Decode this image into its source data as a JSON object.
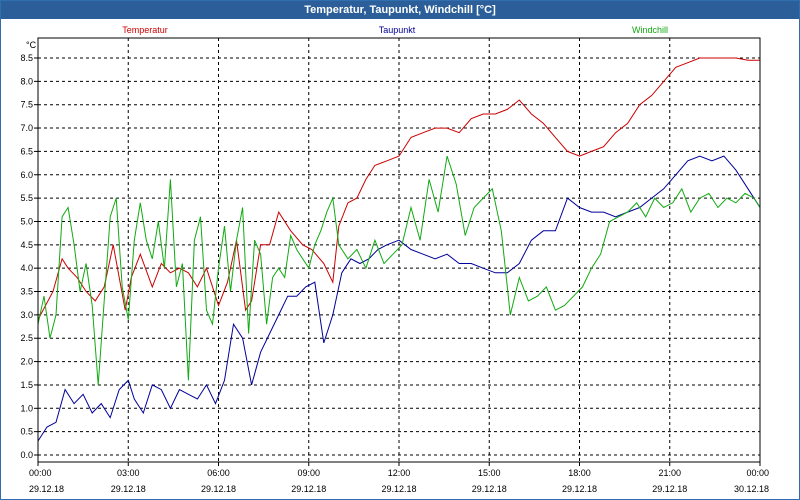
{
  "window": {
    "title": "Temperatur, Taupunkt, Windchill [°C]"
  },
  "colors": {
    "temperatur": "#cc0000",
    "taupunkt": "#000099",
    "windchill": "#11aa11",
    "titlebar": "#2c5f99",
    "grid": "#000000"
  },
  "chart_data": {
    "type": "line",
    "title": "Temperatur, Taupunkt, Windchill [°C]",
    "ylabel": "°C",
    "ylim": [
      0.0,
      8.5
    ],
    "yticks": [
      "0.0",
      "0.5",
      "1.0",
      "1.5",
      "2.0",
      "2.5",
      "3.0",
      "3.5",
      "4.0",
      "4.5",
      "5.0",
      "5.5",
      "6.0",
      "6.5",
      "7.0",
      "7.5",
      "8.0",
      "8.5"
    ],
    "xlim": [
      0,
      24
    ],
    "xticks": [
      {
        "time": "00:00",
        "date": "29.12.18"
      },
      {
        "time": "03:00",
        "date": "29.12.18"
      },
      {
        "time": "06:00",
        "date": "29.12.18"
      },
      {
        "time": "09:00",
        "date": "29.12.18"
      },
      {
        "time": "12:00",
        "date": "29.12.18"
      },
      {
        "time": "15:00",
        "date": "29.12.18"
      },
      {
        "time": "18:00",
        "date": "29.12.18"
      },
      {
        "time": "21:00",
        "date": "29.12.18"
      },
      {
        "time": "00:00",
        "date": "30.12.18"
      }
    ],
    "series": [
      {
        "name": "Temperatur",
        "x": [
          0,
          0.5,
          0.8,
          1.0,
          1.3,
          1.6,
          1.9,
          2.2,
          2.5,
          2.9,
          3.1,
          3.4,
          3.8,
          4.1,
          4.4,
          4.7,
          5.0,
          5.3,
          5.6,
          6.0,
          6.3,
          6.6,
          6.9,
          7.1,
          7.4,
          7.7,
          8.0,
          8.4,
          8.8,
          9.1,
          9.5,
          9.8,
          10.0,
          10.3,
          10.6,
          10.9,
          11.2,
          11.6,
          12.0,
          12.4,
          12.8,
          13.2,
          13.6,
          14.0,
          14.4,
          14.8,
          15.2,
          15.6,
          16.0,
          16.4,
          16.8,
          17.2,
          17.6,
          18.0,
          18.4,
          18.8,
          19.2,
          19.6,
          20.0,
          20.4,
          20.8,
          21.2,
          21.6,
          22.0,
          22.4,
          22.8,
          23.2,
          23.6,
          24.0
        ],
        "values": [
          2.9,
          3.5,
          4.2,
          4.0,
          3.8,
          3.5,
          3.3,
          3.6,
          4.5,
          3.1,
          3.8,
          4.3,
          3.6,
          4.1,
          3.9,
          4.0,
          3.9,
          3.6,
          4.0,
          3.2,
          3.7,
          4.6,
          3.1,
          3.3,
          4.5,
          4.5,
          5.2,
          4.8,
          4.5,
          4.4,
          4.1,
          3.7,
          4.9,
          5.4,
          5.5,
          5.9,
          6.2,
          6.3,
          6.4,
          6.8,
          6.9,
          7.0,
          7.0,
          6.9,
          7.2,
          7.3,
          7.3,
          7.4,
          7.6,
          7.3,
          7.1,
          6.8,
          6.5,
          6.4,
          6.5,
          6.6,
          6.9,
          7.1,
          7.5,
          7.7,
          8.0,
          8.3,
          8.4,
          8.5,
          8.5,
          8.5,
          8.5,
          8.45,
          8.45
        ]
      },
      {
        "name": "Taupunkt",
        "x": [
          0,
          0.3,
          0.6,
          0.9,
          1.2,
          1.5,
          1.8,
          2.1,
          2.4,
          2.7,
          3.0,
          3.2,
          3.5,
          3.8,
          4.1,
          4.4,
          4.7,
          5.0,
          5.3,
          5.6,
          5.9,
          6.2,
          6.5,
          6.8,
          7.1,
          7.4,
          7.7,
          8.0,
          8.3,
          8.6,
          8.9,
          9.2,
          9.5,
          9.8,
          10.1,
          10.4,
          10.7,
          11.0,
          11.3,
          11.6,
          12.0,
          12.4,
          12.8,
          13.2,
          13.6,
          14.0,
          14.4,
          14.8,
          15.2,
          15.6,
          16.0,
          16.4,
          16.8,
          17.2,
          17.6,
          18.0,
          18.4,
          18.8,
          19.2,
          19.6,
          20.0,
          20.4,
          20.8,
          21.2,
          21.6,
          22.0,
          22.4,
          22.8,
          23.2,
          23.6,
          24.0
        ],
        "values": [
          0.3,
          0.6,
          0.7,
          1.4,
          1.1,
          1.3,
          0.9,
          1.1,
          0.8,
          1.4,
          1.6,
          1.2,
          0.9,
          1.5,
          1.4,
          1.0,
          1.4,
          1.3,
          1.2,
          1.5,
          1.1,
          1.6,
          2.8,
          2.5,
          1.5,
          2.2,
          2.6,
          3.0,
          3.4,
          3.4,
          3.6,
          3.7,
          2.4,
          3.0,
          3.9,
          4.2,
          4.1,
          4.2,
          4.4,
          4.5,
          4.6,
          4.4,
          4.3,
          4.2,
          4.3,
          4.1,
          4.1,
          4.0,
          3.9,
          3.9,
          4.1,
          4.6,
          4.8,
          4.8,
          5.5,
          5.3,
          5.2,
          5.2,
          5.1,
          5.2,
          5.3,
          5.5,
          5.7,
          6.0,
          6.3,
          6.4,
          6.3,
          6.4,
          6.1,
          5.7,
          5.3
        ]
      },
      {
        "name": "Windchill",
        "x": [
          0,
          0.2,
          0.4,
          0.6,
          0.8,
          1.0,
          1.2,
          1.4,
          1.6,
          1.8,
          2.0,
          2.2,
          2.4,
          2.6,
          2.8,
          3.0,
          3.2,
          3.4,
          3.6,
          3.8,
          4.0,
          4.2,
          4.4,
          4.6,
          4.8,
          5.0,
          5.2,
          5.4,
          5.6,
          5.8,
          6.0,
          6.2,
          6.4,
          6.6,
          6.8,
          7.0,
          7.2,
          7.4,
          7.6,
          7.8,
          8.0,
          8.2,
          8.4,
          8.6,
          8.8,
          9.0,
          9.2,
          9.4,
          9.6,
          9.8,
          10.0,
          10.3,
          10.6,
          10.9,
          11.2,
          11.5,
          11.8,
          12.1,
          12.4,
          12.7,
          13.0,
          13.3,
          13.6,
          13.9,
          14.2,
          14.5,
          14.8,
          15.1,
          15.4,
          15.7,
          16.0,
          16.3,
          16.6,
          16.9,
          17.2,
          17.5,
          17.8,
          18.1,
          18.4,
          18.7,
          19.0,
          19.3,
          19.6,
          19.9,
          20.2,
          20.5,
          20.8,
          21.1,
          21.4,
          21.7,
          22.0,
          22.3,
          22.6,
          22.9,
          23.2,
          23.5,
          23.8,
          24.0
        ],
        "values": [
          2.8,
          3.4,
          2.5,
          3.0,
          5.1,
          5.3,
          4.5,
          3.5,
          4.1,
          3.2,
          1.5,
          3.3,
          5.1,
          5.5,
          3.6,
          2.9,
          4.6,
          5.4,
          4.6,
          4.2,
          5.0,
          4.0,
          5.9,
          3.6,
          4.1,
          1.6,
          4.6,
          5.1,
          3.1,
          2.8,
          4.0,
          4.9,
          3.5,
          4.6,
          5.3,
          2.6,
          4.6,
          4.3,
          2.8,
          3.8,
          4.0,
          3.8,
          4.7,
          4.4,
          4.2,
          4.0,
          4.5,
          4.8,
          5.2,
          5.5,
          4.5,
          4.2,
          4.4,
          4.0,
          4.6,
          4.1,
          4.3,
          4.5,
          5.3,
          4.6,
          5.9,
          5.2,
          6.4,
          5.8,
          4.7,
          5.3,
          5.5,
          5.7,
          4.8,
          3.0,
          3.8,
          3.3,
          3.4,
          3.6,
          3.1,
          3.2,
          3.4,
          3.6,
          4.0,
          4.3,
          5.0,
          5.1,
          5.2,
          5.4,
          5.1,
          5.5,
          5.3,
          5.4,
          5.7,
          5.2,
          5.5,
          5.6,
          5.3,
          5.5,
          5.4,
          5.6,
          5.5,
          5.3
        ]
      }
    ]
  }
}
